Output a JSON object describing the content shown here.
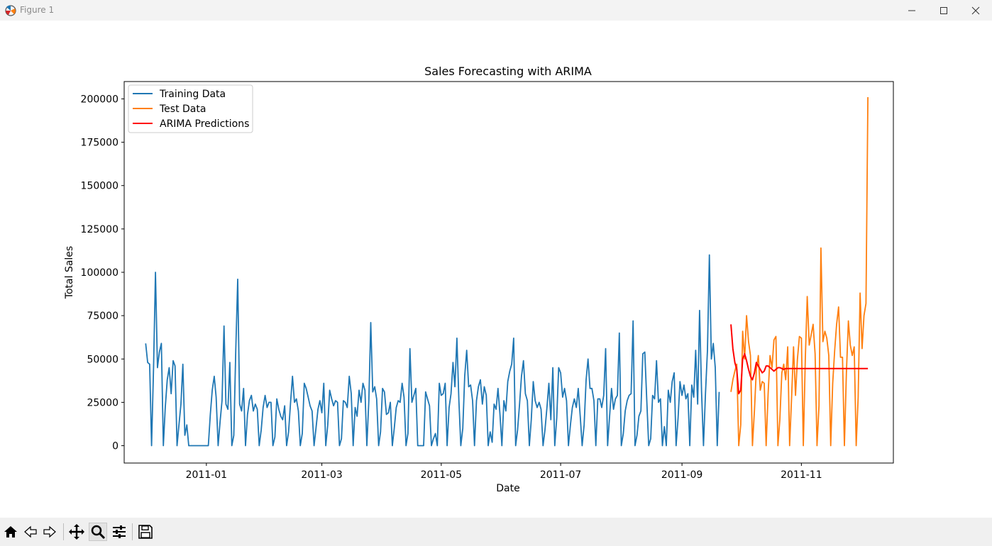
{
  "window": {
    "title": "Figure 1"
  },
  "toolbar": {
    "buttons": [
      {
        "name": "home-button",
        "icon": "home-icon"
      },
      {
        "name": "back-button",
        "icon": "arrow-left-icon"
      },
      {
        "name": "forward-button",
        "icon": "arrow-right-icon"
      },
      {
        "name": "pan-button",
        "icon": "move-icon"
      },
      {
        "name": "zoom-button",
        "icon": "magnifier-icon",
        "active": true
      },
      {
        "name": "configure-subplots-button",
        "icon": "sliders-icon"
      },
      {
        "name": "save-button",
        "icon": "floppy-disk-icon"
      }
    ]
  },
  "chart_data": {
    "type": "line",
    "title": "Sales Forecasting with ARIMA",
    "xlabel": "Date",
    "ylabel": "Total Sales",
    "xlim": [
      "2010-11-20",
      "2011-12-18"
    ],
    "ylim": [
      -10000,
      210000
    ],
    "yticks": [
      0,
      25000,
      50000,
      75000,
      100000,
      125000,
      150000,
      175000,
      200000
    ],
    "xticks": [
      "2011-01-01",
      "2011-03-01",
      "2011-05-01",
      "2011-07-01",
      "2011-09-01",
      "2011-11-01"
    ],
    "xtick_labels": [
      "2011-01",
      "2011-03",
      "2011-05",
      "2011-07",
      "2011-09",
      "2011-11"
    ],
    "grid": false,
    "legend_position": "upper left",
    "series": [
      {
        "name": "Training Data",
        "color": "#1f77b4",
        "start": "2010-12-01",
        "values": [
          59000,
          48000,
          47000,
          0,
          45000,
          100000,
          45000,
          54000,
          59000,
          0,
          22000,
          38000,
          45000,
          30000,
          49000,
          46000,
          0,
          12000,
          24000,
          47000,
          6000,
          12000,
          0,
          0,
          0,
          0,
          0,
          0,
          0,
          0,
          0,
          0,
          0,
          18000,
          32000,
          40000,
          28000,
          0,
          14000,
          26000,
          69000,
          24000,
          21000,
          48000,
          0,
          6000,
          54000,
          96000,
          24000,
          20000,
          33000,
          0,
          18000,
          26000,
          29000,
          20000,
          24000,
          21000,
          0,
          9000,
          22000,
          29000,
          22000,
          25000,
          25000,
          0,
          5000,
          27000,
          21000,
          17000,
          15000,
          23000,
          0,
          8000,
          25000,
          40000,
          25000,
          27000,
          20000,
          0,
          7000,
          36000,
          33000,
          28000,
          23000,
          20000,
          0,
          10000,
          21000,
          26000,
          19000,
          36000,
          0,
          12000,
          32000,
          27000,
          23000,
          26000,
          25000,
          0,
          4000,
          26000,
          25000,
          22000,
          40000,
          30000,
          0,
          22000,
          17000,
          32000,
          25000,
          36000,
          32000,
          0,
          26000,
          71000,
          31000,
          34000,
          27000,
          0,
          8000,
          33000,
          31000,
          18000,
          19000,
          25000,
          0,
          10000,
          22000,
          26000,
          25000,
          36000,
          28000,
          0,
          7000,
          56000,
          25000,
          29000,
          33000,
          0,
          0,
          0,
          0,
          31000,
          27000,
          23000,
          0,
          4000,
          7000,
          0,
          36000,
          29000,
          30000,
          36000,
          0,
          22000,
          30000,
          48000,
          34000,
          62000,
          26000,
          0,
          10000,
          40000,
          55000,
          34000,
          35000,
          26000,
          0,
          26000,
          34000,
          38000,
          24000,
          34000,
          29000,
          0,
          8000,
          2000,
          24000,
          21000,
          33000,
          18000,
          0,
          26000,
          20000,
          37000,
          43000,
          47000,
          62000,
          0,
          9000,
          24000,
          40000,
          49000,
          30000,
          26000,
          0,
          15000,
          37000,
          26000,
          22000,
          25000,
          21000,
          0,
          9000,
          22000,
          36000,
          15000,
          45000,
          0,
          16000,
          45000,
          42000,
          28000,
          33000,
          26000,
          0,
          12000,
          22000,
          27000,
          22000,
          33000,
          17000,
          0,
          12000,
          38000,
          50000,
          33000,
          33000,
          26000,
          0,
          27000,
          27000,
          22000,
          29000,
          56000,
          0,
          17000,
          33000,
          21000,
          27000,
          29000,
          65000,
          0,
          7000,
          20000,
          26000,
          29000,
          30000,
          72000,
          0,
          6000,
          17000,
          20000,
          53000,
          54000,
          26000,
          0,
          4000,
          29000,
          27000,
          49000,
          25000,
          27000,
          0,
          11000,
          0,
          32000,
          25000,
          37000,
          42000,
          0,
          16000,
          37000,
          29000,
          35000,
          27000,
          30000,
          0,
          35000,
          28000,
          55000,
          24000,
          78000,
          31000,
          0,
          30000,
          55000,
          110000,
          50000,
          59000,
          45000,
          0,
          31000
        ]
      },
      {
        "name": "Test Data",
        "color": "#ff7f0e",
        "start": "2011-09-26",
        "values": [
          31000,
          38000,
          43000,
          47000,
          0,
          12000,
          66000,
          50000,
          75000,
          60000,
          52000,
          0,
          20000,
          44000,
          52000,
          32000,
          37000,
          36000,
          0,
          30000,
          52000,
          45000,
          61000,
          63000,
          0,
          15000,
          42000,
          47000,
          38000,
          57000,
          0,
          28000,
          57000,
          29000,
          50000,
          63000,
          62000,
          0,
          50000,
          86000,
          58000,
          64000,
          70000,
          53000,
          0,
          23000,
          114000,
          60000,
          66000,
          62000,
          52000,
          0,
          36000,
          55000,
          70000,
          80000,
          51000,
          51000,
          0,
          42000,
          72000,
          58000,
          52000,
          57000,
          0,
          28000,
          88000,
          56000,
          75000,
          82000,
          201000
        ]
      },
      {
        "name": "ARIMA Predictions",
        "color": "#ff0000",
        "start": "2011-09-26",
        "values": [
          70000,
          56000,
          48000,
          44000,
          30000,
          32000,
          50000,
          53000,
          49000,
          44000,
          40000,
          38000,
          42000,
          48000,
          46000,
          44000,
          42000,
          43000,
          46000,
          46000,
          45000,
          44000,
          43000,
          44000,
          45000,
          45000,
          44500,
          44000,
          44500,
          44500,
          44500,
          44500,
          44500,
          44500,
          44500,
          44500,
          44500,
          44500,
          44500,
          44500,
          44500,
          44500,
          44500,
          44500,
          44500,
          44500,
          44500,
          44500,
          44500,
          44500,
          44500,
          44500,
          44500,
          44500,
          44500,
          44500,
          44500,
          44500,
          44500,
          44500,
          44500,
          44500,
          44500,
          44500,
          44500,
          44500,
          44500,
          44500,
          44500,
          44500,
          44500
        ]
      }
    ]
  }
}
